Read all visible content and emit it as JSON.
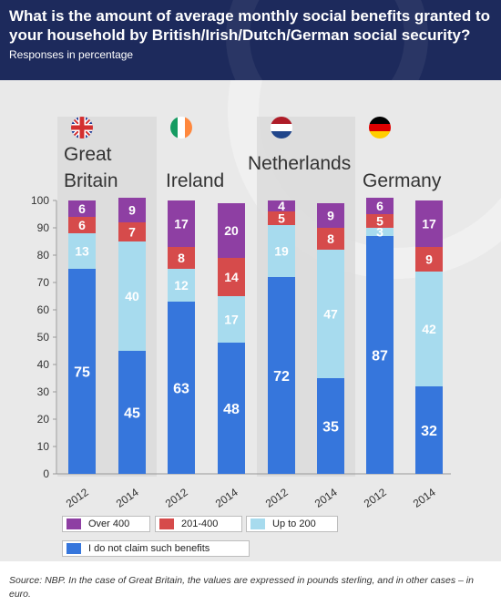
{
  "header": {
    "title": "What is the amount of average monthly social benefits granted to your household by British/Irish/Dutch/German social security?",
    "subtitle": "Responses in percentage"
  },
  "source": "Source: NBP. In the case of Great Britain, the values are expressed in pounds sterling, and in other cases – in euro.",
  "colors": {
    "over400": "#8e3fa3",
    "r201_400": "#d64b4b",
    "upto200": "#a7dbee",
    "none": "#3676dc"
  },
  "chart_data": {
    "type": "bar",
    "stacked": true,
    "categories": [
      "2012",
      "2014",
      "2012",
      "2014",
      "2012",
      "2014",
      "2012",
      "2014"
    ],
    "groups": [
      {
        "name": "Great Britain",
        "flag": "uk-flag-icon"
      },
      {
        "name": "Ireland",
        "flag": "ireland-flag-icon"
      },
      {
        "name": "Netherlands",
        "flag": "netherlands-flag-icon"
      },
      {
        "name": "Germany",
        "flag": "germany-flag-icon"
      }
    ],
    "series": [
      {
        "name": "I do not claim such benefits",
        "color": "#3676dc",
        "values": [
          75,
          45,
          63,
          48,
          72,
          35,
          87,
          32
        ]
      },
      {
        "name": "Up to 200",
        "color": "#a7dbee",
        "values": [
          13,
          40,
          12,
          17,
          19,
          47,
          3,
          42
        ]
      },
      {
        "name": "201-400",
        "color": "#d64b4b",
        "values": [
          6,
          7,
          8,
          14,
          5,
          8,
          5,
          9
        ]
      },
      {
        "name": "Over 400",
        "color": "#8e3fa3",
        "values": [
          6,
          9,
          17,
          20,
          4,
          9,
          6,
          17
        ]
      }
    ],
    "ylim": [
      0,
      100
    ],
    "yticks": [
      0,
      10,
      20,
      30,
      40,
      50,
      60,
      70,
      80,
      90,
      100
    ],
    "xlabel": "",
    "ylabel": "",
    "grid": false,
    "legend_position": "bottom"
  },
  "legend": [
    {
      "label": "Over 400",
      "color": "#8e3fa3"
    },
    {
      "label": "201-400",
      "color": "#d64b4b"
    },
    {
      "label": "Up to 200",
      "color": "#a7dbee"
    },
    {
      "label": "I do not claim such benefits",
      "color": "#3676dc"
    }
  ]
}
